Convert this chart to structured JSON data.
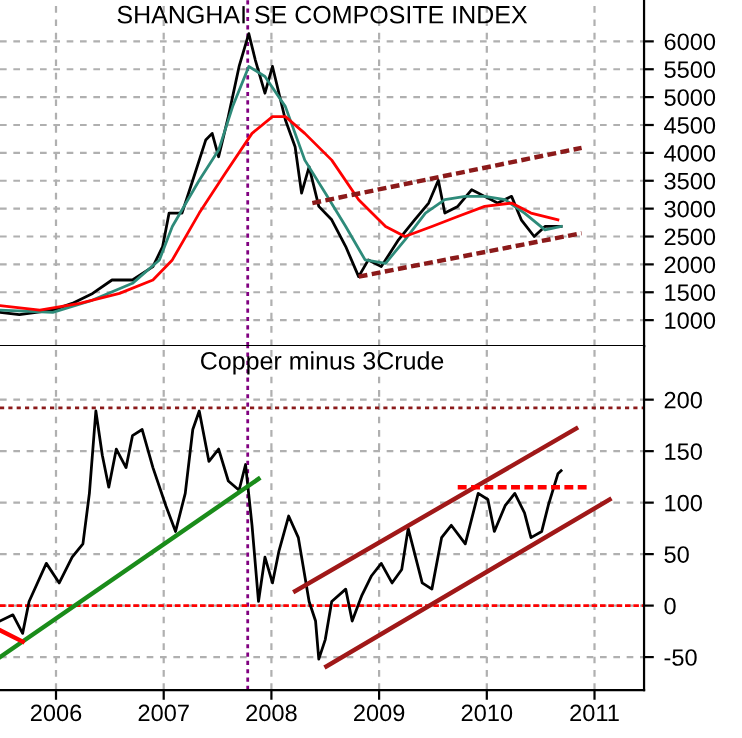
{
  "chart_data": [
    {
      "type": "line",
      "title": "SHANGHAI SE COMPOSITE INDEX",
      "xlim": [
        2005.48,
        2011.46
      ],
      "xticks": [
        {
          "value": 2006,
          "label": null
        },
        {
          "value": 2007,
          "label": null
        },
        {
          "value": 2008,
          "label": null
        },
        {
          "value": 2009,
          "label": null
        },
        {
          "value": 2010,
          "label": null
        },
        {
          "value": 2011,
          "label": null
        }
      ],
      "ylim": [
        534,
        6742
      ],
      "yticks": [
        1000,
        1500,
        2000,
        2500,
        3000,
        3500,
        4000,
        4500,
        5000,
        5500,
        6000
      ],
      "tick_labels": "y",
      "grid": true,
      "legend": false,
      "ref_lines": [
        {
          "axis": "x",
          "value": 2007.78,
          "color": "#800080",
          "line_style": "dotted"
        }
      ],
      "series": [
        {
          "color": "#000000",
          "x": [
            2005.48,
            2005.66,
            2005.97,
            2006.15,
            2006.34,
            2006.52,
            2006.71,
            2006.9,
            2006.99,
            2007.05,
            2007.17,
            2007.27,
            2007.39,
            2007.45,
            2007.51,
            2007.6,
            2007.7,
            2007.79,
            2007.85,
            2007.94,
            2008.01,
            2008.13,
            2008.22,
            2008.28,
            2008.35,
            2008.44,
            2008.56,
            2008.69,
            2008.81,
            2008.9,
            2009.02,
            2009.18,
            2009.33,
            2009.46,
            2009.55,
            2009.61,
            2009.73,
            2009.86,
            2009.98,
            2010.1,
            2010.23,
            2010.32,
            2010.44,
            2010.54,
            2010.69
          ],
          "values": [
            1140,
            1100,
            1180,
            1300,
            1480,
            1720,
            1720,
            1960,
            2320,
            2920,
            2920,
            3510,
            4230,
            4350,
            3930,
            4650,
            5550,
            6140,
            5670,
            5070,
            5550,
            4590,
            4110,
            3280,
            3750,
            3040,
            2800,
            2320,
            1780,
            2080,
            1960,
            2440,
            2800,
            3100,
            3510,
            2920,
            3040,
            3340,
            3220,
            3100,
            3220,
            2800,
            2500,
            2680,
            2680
          ]
        },
        {
          "color": "#2e8b7a",
          "x": [
            2005.48,
            2005.97,
            2006.34,
            2006.71,
            2006.96,
            2007.08,
            2007.33,
            2007.51,
            2007.64,
            2007.79,
            2007.94,
            2008.13,
            2008.31,
            2008.5,
            2008.69,
            2008.87,
            2009.06,
            2009.24,
            2009.43,
            2009.61,
            2009.8,
            2009.98,
            2010.17,
            2010.35,
            2010.54,
            2010.69
          ],
          "values": [
            1180,
            1140,
            1360,
            1660,
            2080,
            2680,
            3510,
            4050,
            4830,
            5550,
            5370,
            4830,
            3870,
            3280,
            2680,
            2080,
            2020,
            2440,
            2920,
            3160,
            3220,
            3220,
            3160,
            2920,
            2620,
            2680
          ]
        },
        {
          "color": "#ff0000",
          "x": [
            2005.48,
            2005.85,
            2006.22,
            2006.59,
            2006.9,
            2007.08,
            2007.33,
            2007.57,
            2007.82,
            2008.01,
            2008.13,
            2008.31,
            2008.56,
            2008.81,
            2009.06,
            2009.24,
            2009.49,
            2009.73,
            2009.98,
            2010.23,
            2010.41,
            2010.66
          ],
          "values": [
            1260,
            1180,
            1300,
            1480,
            1720,
            2080,
            2920,
            3630,
            4350,
            4650,
            4650,
            4350,
            3870,
            3160,
            2680,
            2500,
            2680,
            2860,
            3040,
            3100,
            2920,
            2800
          ]
        },
        {
          "color": "#8b1a1a",
          "line_style": "dashed",
          "x": [
            2008.38,
            2010.88
          ],
          "values": [
            3100,
            4090
          ]
        },
        {
          "color": "#8b1a1a",
          "line_style": "dashed",
          "x": [
            2008.81,
            2010.88
          ],
          "values": [
            1780,
            2560
          ]
        }
      ]
    },
    {
      "type": "line",
      "title": "Copper minus 3Crude",
      "xlim": [
        2005.48,
        2011.46
      ],
      "xticks": [
        2006,
        2007,
        2008,
        2009,
        2010,
        2011
      ],
      "ylim": [
        -82,
        252
      ],
      "yticks": [
        -50,
        0,
        50,
        100,
        150,
        200
      ],
      "grid": true,
      "legend": false,
      "ref_lines": [
        {
          "axis": "x",
          "value": 2007.78,
          "color": "#800080",
          "line_style": "dotted"
        },
        {
          "axis": "y",
          "value": 0,
          "color": "#ff0000",
          "line_style": "dashed"
        },
        {
          "axis": "y",
          "value": 192,
          "color": "#8b1a1a",
          "line_style": "dotted"
        }
      ],
      "series": [
        {
          "color": "#000000",
          "x": [
            2005.48,
            2005.6,
            2005.69,
            2005.75,
            2005.91,
            2006.03,
            2006.15,
            2006.25,
            2006.31,
            2006.37,
            2006.43,
            2006.49,
            2006.56,
            2006.65,
            2006.71,
            2006.8,
            2006.9,
            2007.02,
            2007.11,
            2007.2,
            2007.27,
            2007.33,
            2007.42,
            2007.51,
            2007.6,
            2007.7,
            2007.76,
            2007.82,
            2007.88,
            2007.94,
            2008.01,
            2008.07,
            2008.16,
            2008.25,
            2008.35,
            2008.41,
            2008.44,
            2008.5,
            2008.56,
            2008.69,
            2008.75,
            2008.84,
            2008.93,
            2009.02,
            2009.12,
            2009.21,
            2009.27,
            2009.4,
            2009.49,
            2009.58,
            2009.67,
            2009.8,
            2009.92,
            2010.01,
            2010.07,
            2010.17,
            2010.26,
            2010.35,
            2010.41,
            2010.51,
            2010.57,
            2010.66,
            2010.69
          ],
          "values": [
            -15,
            -9,
            -27,
            4,
            41,
            22,
            47,
            60,
            109,
            189,
            146,
            115,
            152,
            134,
            165,
            171,
            134,
            97,
            72,
            109,
            171,
            189,
            140,
            152,
            121,
            112,
            137,
            78,
            4,
            47,
            22,
            53,
            87,
            66,
            4,
            -15,
            -52,
            -33,
            4,
            16,
            -15,
            10,
            29,
            41,
            22,
            35,
            75,
            22,
            16,
            66,
            78,
            60,
            109,
            103,
            72,
            97,
            109,
            90,
            66,
            72,
            97,
            128,
            131
          ]
        },
        {
          "color": "#1a8c1a",
          "x": [
            2005.48,
            2007.88
          ],
          "values": [
            -50,
            123
          ]
        },
        {
          "color": "#ff0000",
          "x": [
            2005.48,
            2005.69
          ],
          "values": [
            -24,
            -35
          ]
        },
        {
          "color": "#a01818",
          "x": [
            2008.51,
            2011.14
          ],
          "values": [
            -59,
            103
          ]
        },
        {
          "color": "#a01818",
          "x": [
            2008.22,
            2010.83
          ],
          "values": [
            14,
            172
          ]
        },
        {
          "color": "#ff0000",
          "line_style": "dashed",
          "x": [
            2009.73,
            2010.96
          ],
          "values": [
            115,
            115
          ]
        }
      ]
    }
  ]
}
